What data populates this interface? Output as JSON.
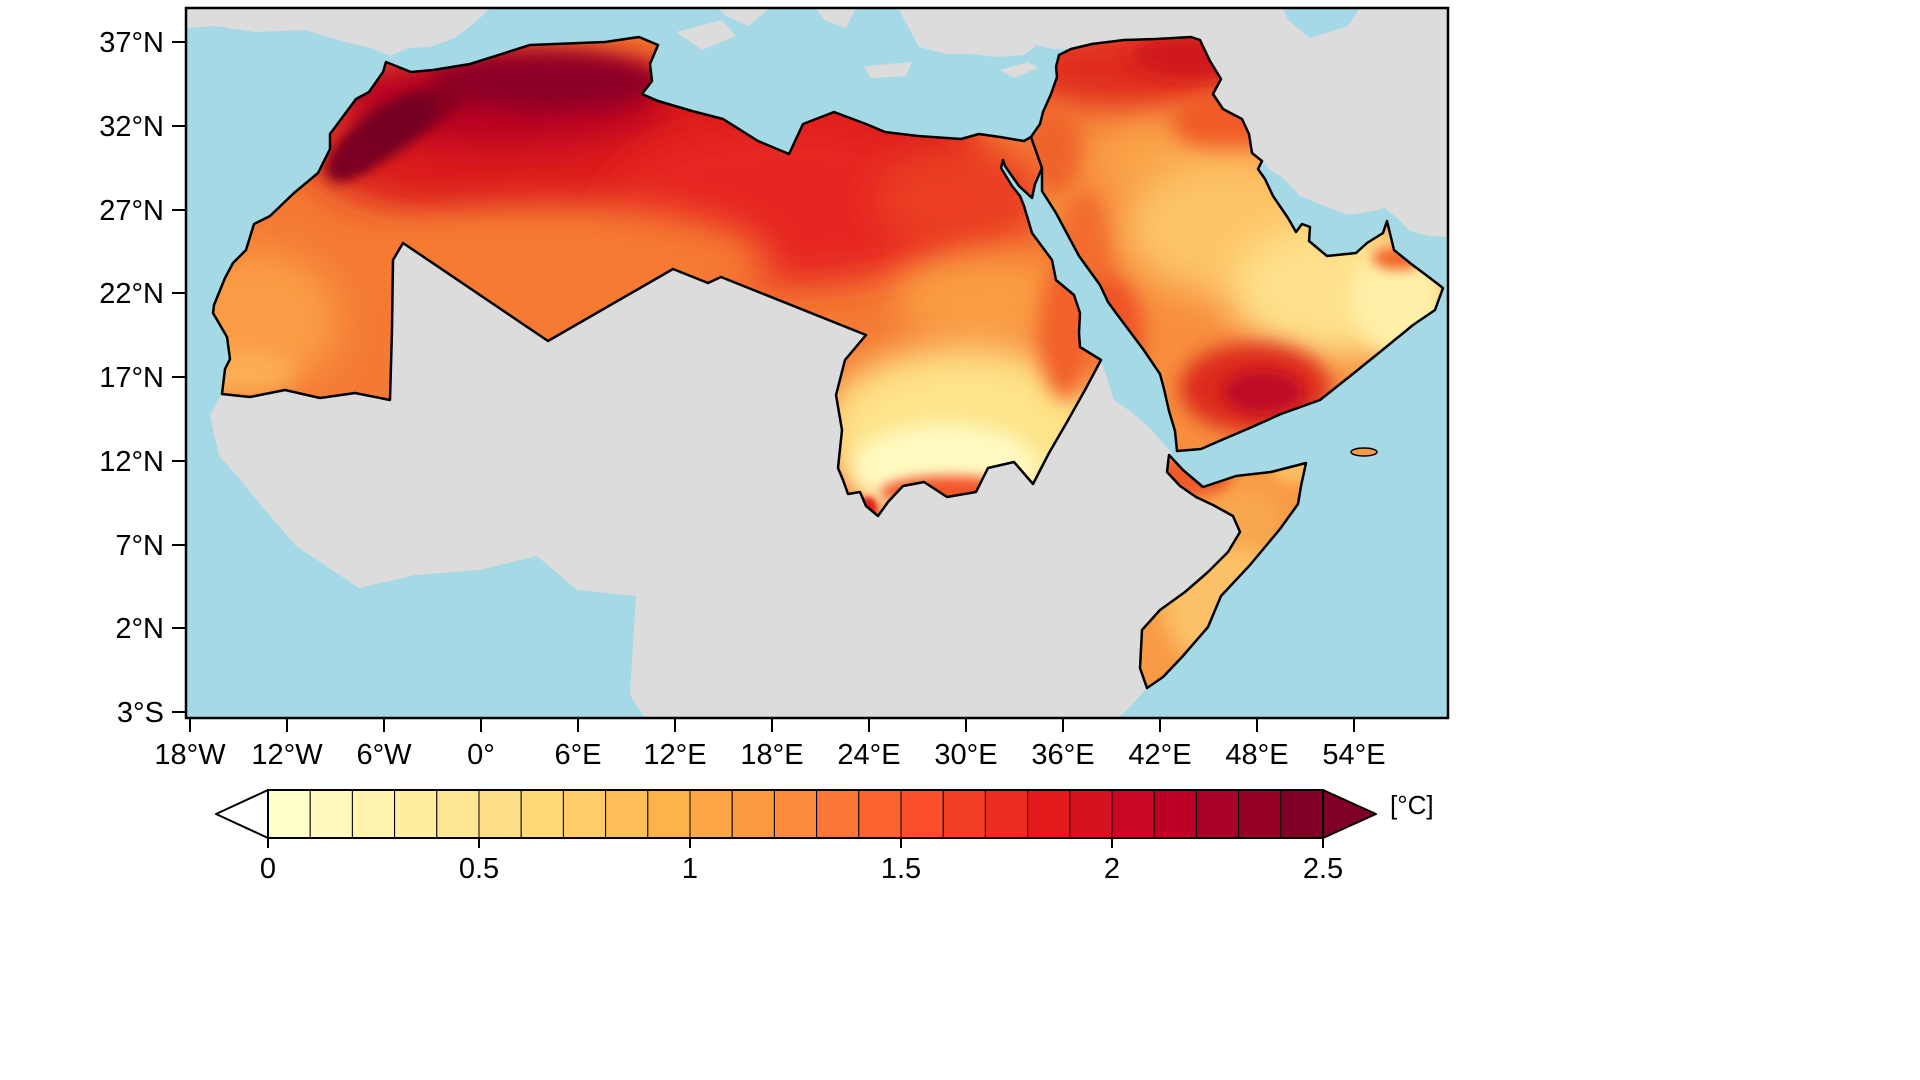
{
  "figure": {
    "title": "",
    "map": {
      "ocean_color": "#a6d9e6",
      "land_color": "#dcdcdc",
      "outline_color": "#000000",
      "description": "Temperature change map over the MENA region (North Africa, Arabian Peninsula, Horn of Africa); non-MENA land masked gray, ocean light blue"
    },
    "y_axis": {
      "ticks": [
        "37°N",
        "32°N",
        "27°N",
        "22°N",
        "17°N",
        "12°N",
        "7°N",
        "2°N",
        "3°S"
      ]
    },
    "x_axis": {
      "ticks": [
        "18°W",
        "12°W",
        "6°W",
        "0°",
        "6°E",
        "12°E",
        "18°E",
        "24°E",
        "30°E",
        "36°E",
        "42°E",
        "48°E",
        "54°E"
      ]
    },
    "colorbar": {
      "unit_label": "[°C]",
      "tick_labels": [
        "0",
        "0.5",
        "1",
        "1.5",
        "2",
        "2.5"
      ],
      "under_color": "#ffffff",
      "over_color": "#800026",
      "colors": [
        "#ffffcc",
        "#fff9bd",
        "#fff3ae",
        "#ffeda0",
        "#fee592",
        "#fede84",
        "#fed976",
        "#fecc68",
        "#febf5b",
        "#feb24c",
        "#fda647",
        "#fd9941",
        "#fd8d3c",
        "#fd7836",
        "#fc6330",
        "#fc4e2a",
        "#f43d25",
        "#eb2c20",
        "#e31a1c",
        "#d61220",
        "#c90923",
        "#bd0026",
        "#a80026",
        "#940026",
        "#800026"
      ]
    }
  },
  "chart_data": {
    "type": "heatmap",
    "subtype": "geographic map, filled contours",
    "title": "",
    "variable": "temperature change",
    "units": "°C",
    "value_range": [
      0,
      2.5
    ],
    "colormap": "YlOrRd",
    "colorbar": {
      "label": "[°C]",
      "ticks": [
        0,
        0.5,
        1,
        1.5,
        2,
        2.5
      ],
      "extend": "both"
    },
    "x_axis": {
      "label": "",
      "tick_labels": [
        "18°W",
        "12°W",
        "6°W",
        "0°",
        "6°E",
        "12°E",
        "18°E",
        "24°E",
        "30°E",
        "36°E",
        "42°E",
        "48°E",
        "54°E"
      ],
      "lon_range": [
        -18,
        60
      ]
    },
    "y_axis": {
      "label": "",
      "tick_labels": [
        "37°N",
        "32°N",
        "27°N",
        "22°N",
        "17°N",
        "12°N",
        "7°N",
        "2°N",
        "3°S"
      ],
      "lat_range": [
        -3.5,
        39
      ]
    },
    "region_values_c": [
      {
        "region": "Atlas Mountains / northern Morocco-Algeria",
        "approx_value": 2.4
      },
      {
        "region": "Northern Algeria-Tunisia coast belt",
        "approx_value": 2.1
      },
      {
        "region": "Central Algerian/Libyan Sahara",
        "approx_value": 1.9
      },
      {
        "region": "Mauritania / Western Sahara",
        "approx_value": 1.4
      },
      {
        "region": "Northern Egypt",
        "approx_value": 1.7
      },
      {
        "region": "Upper Egypt / northern Sudan",
        "approx_value": 1.2
      },
      {
        "region": "Central-southern Sudan",
        "approx_value": 0.6
      },
      {
        "region": "Southern Sudan border strip",
        "approx_value": 1.4
      },
      {
        "region": "Syria / northern Iraq",
        "approx_value": 1.9
      },
      {
        "region": "Central Arabian Peninsula",
        "approx_value": 1.1
      },
      {
        "region": "Eastern Arabia / Oman interior",
        "approx_value": 0.7
      },
      {
        "region": "Yemen / Asir highlands",
        "approx_value": 1.9
      },
      {
        "region": "Somalia / Horn of Africa",
        "approx_value": 1.1
      }
    ],
    "masked_regions": "non-MENA land shown in gray; ocean shown in light blue",
    "grid": false,
    "legend_position": "horizontal colorbar below map"
  }
}
